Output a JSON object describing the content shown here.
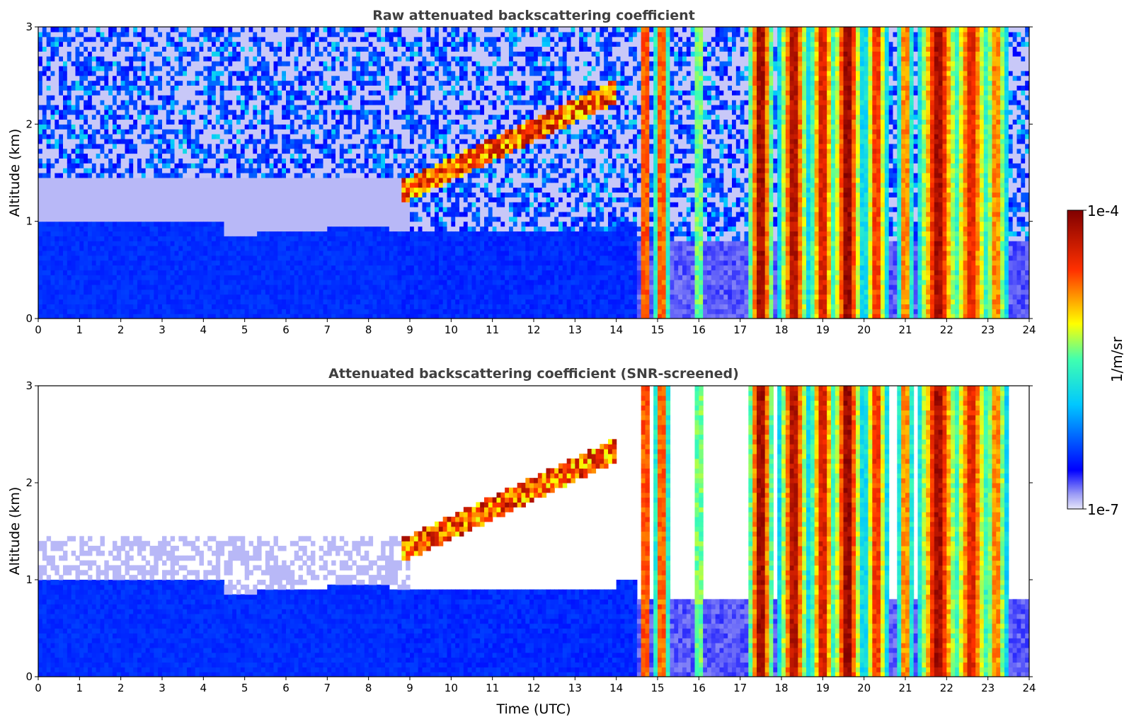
{
  "chart_data": [
    {
      "type": "heatmap",
      "title": "Raw attenuated backscattering coefficient",
      "xlabel": "",
      "ylabel": "Altitude (km)",
      "xlim": [
        0,
        24
      ],
      "ylim": [
        0,
        3
      ],
      "x_ticks": [
        "0",
        "1",
        "2",
        "3",
        "4",
        "5",
        "6",
        "7",
        "8",
        "9",
        "10",
        "11",
        "12",
        "13",
        "14",
        "15",
        "16",
        "17",
        "18",
        "19",
        "20",
        "21",
        "22",
        "23",
        "24"
      ],
      "y_ticks": [
        "0",
        "1",
        "2",
        "3"
      ],
      "grid": false,
      "features": [
        {
          "name": "boundary layer",
          "x": [
            0,
            8.5
          ],
          "altitude_top_km": 1.0,
          "level": "low"
        },
        {
          "name": "rising cloud layer",
          "x": [
            8.8,
            14.0
          ],
          "altitude_km": [
            1.3,
            2.5
          ],
          "level": "high"
        },
        {
          "name": "convective columns",
          "x": [
            14.5,
            23.5
          ],
          "altitude_km": [
            0,
            3
          ],
          "level": "high"
        }
      ]
    },
    {
      "type": "heatmap",
      "title": "Attenuated backscattering coefficient (SNR-screened)",
      "xlabel": "Time (UTC)",
      "ylabel": "Altitude (km)",
      "xlim": [
        0,
        24
      ],
      "ylim": [
        0,
        3
      ],
      "x_ticks": [
        "0",
        "1",
        "2",
        "3",
        "4",
        "5",
        "6",
        "7",
        "8",
        "9",
        "10",
        "11",
        "12",
        "13",
        "14",
        "15",
        "16",
        "17",
        "18",
        "19",
        "20",
        "21",
        "22",
        "23",
        "24"
      ],
      "y_ticks": [
        "0",
        "1",
        "2",
        "3"
      ],
      "grid": false
    }
  ],
  "colorbar": {
    "label": "1/m/sr",
    "max_label": "1e-4",
    "min_label": "1e-7",
    "scale": "log",
    "range": [
      1e-07,
      0.0001
    ],
    "colormap": [
      "#e6e6fa",
      "#0000ff",
      "#00ffff",
      "#ffff00",
      "#ff0000",
      "#800000"
    ]
  }
}
